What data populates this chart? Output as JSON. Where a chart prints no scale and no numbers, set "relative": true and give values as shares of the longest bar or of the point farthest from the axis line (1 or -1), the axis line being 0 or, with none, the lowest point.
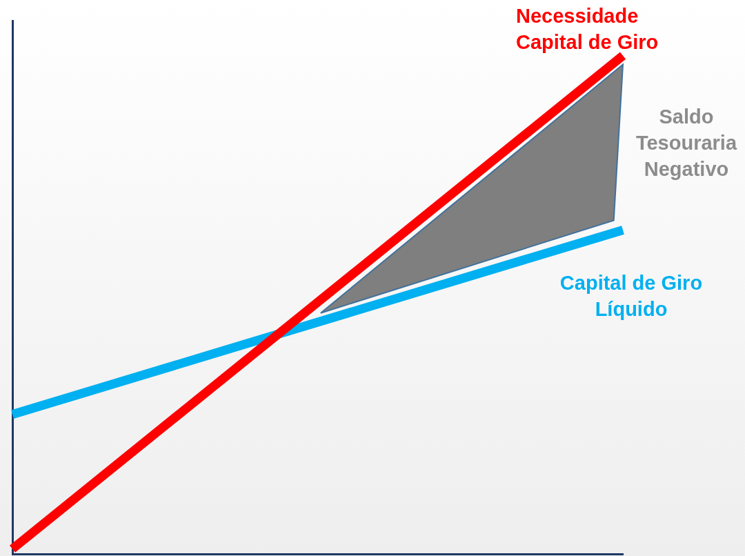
{
  "chart_data": {
    "type": "line",
    "relative": true,
    "categories": [
      null,
      null
    ],
    "legend": false,
    "grid": false,
    "tick_labels": false,
    "marker": "none",
    "line_style": "solid",
    "series": [
      {
        "name": "Necessidade Capital de Giro",
        "color": "#ff0000",
        "values": [
          0.01,
          1
        ]
      },
      {
        "name": "Capital de Giro Líquido",
        "color": "#00b0f0",
        "values": [
          0.28,
          0.65
        ]
      }
    ],
    "annotations": [
      "Saldo Tesouraria Negativo"
    ]
  }
}
